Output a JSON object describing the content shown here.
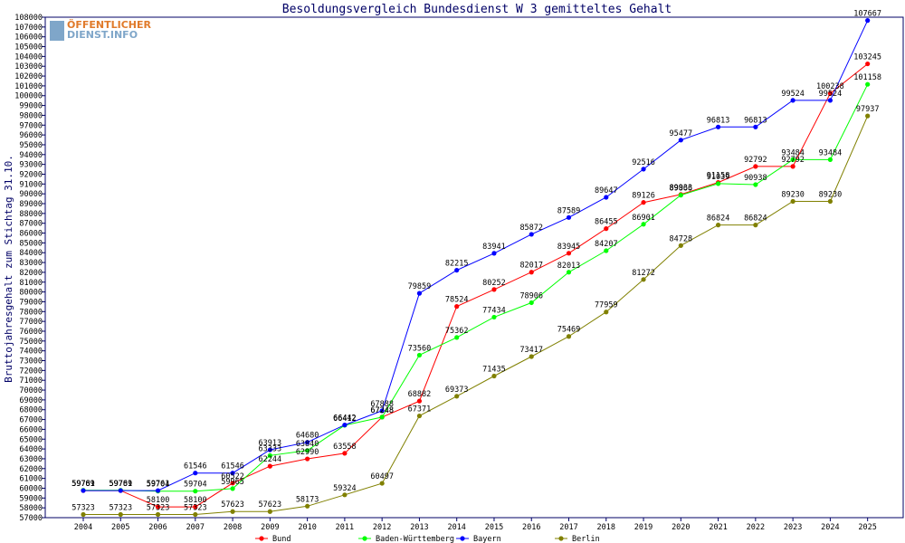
{
  "logo": {
    "line1": "ÖFFENTLICHER",
    "line2": "DIENST.INFO"
  },
  "chart_data": {
    "type": "line",
    "title": "Besoldungsvergleich Bundesdienst W 3 gemitteltes Gehalt",
    "xlabel": "",
    "ylabel": "Bruttojahresgehalt zum Stichtag 31.10.",
    "x": [
      "2004",
      "2005",
      "2006",
      "2007",
      "2008",
      "2009",
      "2010",
      "2011",
      "2012",
      "2013",
      "2014",
      "2015",
      "2016",
      "2017",
      "2018",
      "2019",
      "2020",
      "2021",
      "2022",
      "2023",
      "2024",
      "2025"
    ],
    "ylim": [
      57000,
      108000
    ],
    "ytick_step": 1000,
    "grid": false,
    "legend_position": "bottom",
    "series": [
      {
        "name": "Bund",
        "color": "#ff0000",
        "values": [
          59761,
          59761,
          58100,
          58100,
          60522,
          62244,
          62990,
          63558,
          67248,
          68882,
          78524,
          80252,
          82017,
          83945,
          86455,
          89126,
          89933,
          91158,
          92792,
          92792,
          100238,
          103245
        ]
      },
      {
        "name": "Baden-Württemberg",
        "color": "#00ff00",
        "values": [
          59789,
          59789,
          59704,
          59704,
          59965,
          63333,
          63840,
          66412,
          67248,
          73560,
          75362,
          77434,
          78906,
          82013,
          84207,
          86901,
          89866,
          91039,
          90938,
          93484,
          93484,
          101158
        ]
      },
      {
        "name": "Bayern",
        "color": "#0000ff",
        "values": [
          59761,
          59761,
          59761,
          61546,
          61546,
          63913,
          64680,
          66442,
          67888,
          79859,
          82215,
          83941,
          85872,
          87589,
          89647,
          92516,
          95477,
          96813,
          96813,
          99524,
          99524,
          107667
        ]
      },
      {
        "name": "Berlin",
        "color": "#808000",
        "values": [
          57323,
          57323,
          57323,
          57323,
          57623,
          57623,
          58173,
          59324,
          60497,
          67371,
          69373,
          71435,
          73417,
          75469,
          77959,
          81272,
          84728,
          86824,
          86824,
          89230,
          89230,
          97937
        ]
      }
    ]
  }
}
